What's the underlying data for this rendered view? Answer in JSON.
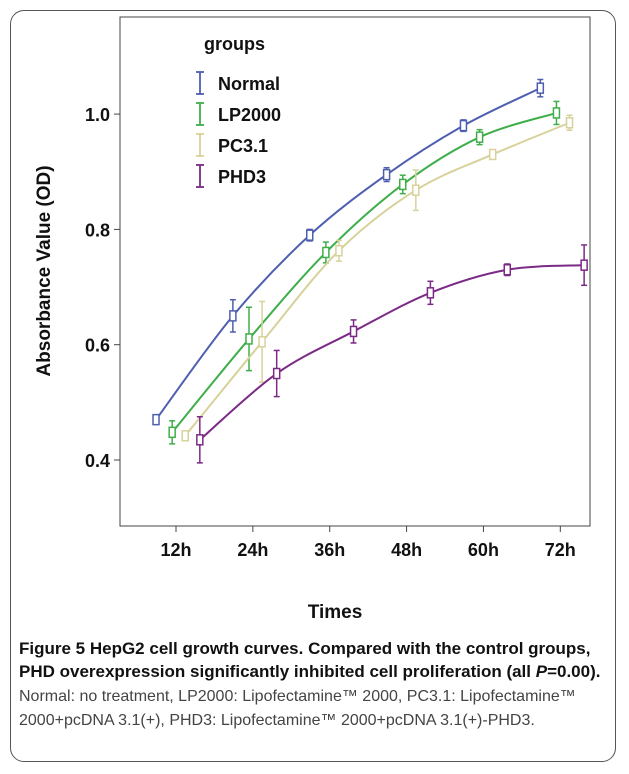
{
  "chart_data": {
    "type": "line",
    "xlabel": "Times",
    "ylabel": "Absorbance Value (OD)",
    "legend_title": "groups",
    "legend_position": "top-left",
    "grid": false,
    "ylim": [
      0.3,
      1.15
    ],
    "y_ticks": [
      "0.4",
      "0.6",
      "0.8",
      "1.0"
    ],
    "x_ticks": [
      "12h",
      "24h",
      "36h",
      "48h",
      "60h",
      "72h"
    ],
    "series": [
      {
        "name": "Normal",
        "color": "#4e5fb0",
        "x": [
          12,
          24,
          36,
          48,
          60,
          72
        ],
        "offset": -0.26,
        "y": [
          0.47,
          0.65,
          0.79,
          0.895,
          0.98,
          1.045
        ],
        "err": [
          0.008,
          0.028,
          0.01,
          0.012,
          0.01,
          0.015
        ]
      },
      {
        "name": "LP2000",
        "color": "#3fae4a",
        "x": [
          12,
          24,
          36,
          48,
          60,
          72
        ],
        "offset": -0.05,
        "y": [
          0.448,
          0.61,
          0.76,
          0.878,
          0.96,
          1.002
        ],
        "err": [
          0.02,
          0.055,
          0.018,
          0.016,
          0.013,
          0.02
        ]
      },
      {
        "name": "PC3.1",
        "color": "#d7d29a",
        "x": [
          12,
          24,
          36,
          48,
          60,
          72
        ],
        "offset": 0.12,
        "y": [
          0.442,
          0.605,
          0.763,
          0.868,
          0.93,
          0.985
        ],
        "err": [
          0.006,
          0.07,
          0.018,
          0.035,
          0.008,
          0.013
        ]
      },
      {
        "name": "PHD3",
        "color": "#7b2a86",
        "x": [
          12,
          24,
          36,
          48,
          60,
          72
        ],
        "offset": 0.31,
        "y": [
          0.435,
          0.55,
          0.623,
          0.69,
          0.73,
          0.738
        ],
        "err": [
          0.04,
          0.04,
          0.02,
          0.02,
          0.01,
          0.035
        ]
      }
    ]
  },
  "caption": {
    "lead": "Figure 5 HepG2 cell growth curves. Compared with the control groups, PHD overexpression significantly inhibited cell proliferation (all ",
    "p_symbol": "P",
    "p_value": "=0.00).",
    "body": " Normal: no treatment, LP2000: Lipofectamine™ 2000, PC3.1: Lipofectamine™ 2000+pcDNA 3.1(+), PHD3: Lipofectamine™ 2000+pcDNA 3.1(+)-PHD3."
  }
}
